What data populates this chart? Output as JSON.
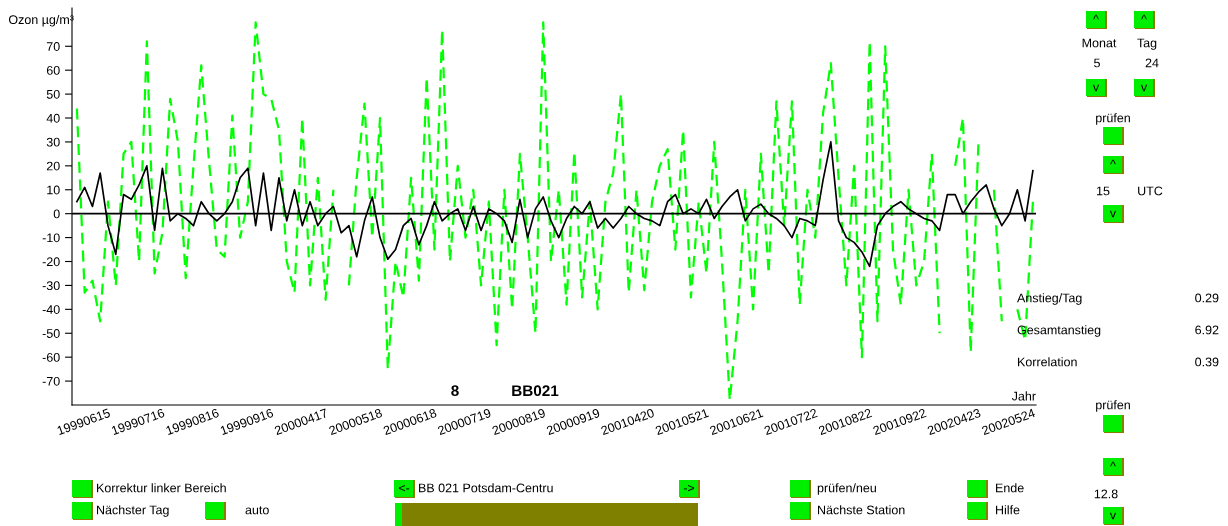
{
  "chart_data": {
    "type": "line",
    "ylabel": "Ozon µg/m³",
    "xlabel": "Jahr",
    "categories": [
      null,
      null,
      null,
      null,
      "19990615",
      null,
      null,
      null,
      null,
      null,
      null,
      "19990716",
      null,
      null,
      null,
      null,
      null,
      null,
      "19990816",
      null,
      null,
      null,
      null,
      null,
      null,
      "19990916",
      null,
      null,
      null,
      null,
      null,
      null,
      "20000417",
      null,
      null,
      null,
      null,
      null,
      null,
      "20000518",
      null,
      null,
      null,
      null,
      null,
      null,
      "20000618",
      null,
      null,
      null,
      null,
      null,
      null,
      "20000719",
      null,
      null,
      null,
      null,
      null,
      null,
      "20000819",
      null,
      null,
      null,
      null,
      null,
      null,
      "20000919",
      null,
      null,
      null,
      null,
      null,
      null,
      "20010420",
      null,
      null,
      null,
      null,
      null,
      null,
      "20010521",
      null,
      null,
      null,
      null,
      null,
      null,
      "20010621",
      null,
      null,
      null,
      null,
      null,
      null,
      "20010722",
      null,
      null,
      null,
      null,
      null,
      null,
      "20010822",
      null,
      null,
      null,
      null,
      null,
      null,
      "20010922",
      null,
      null,
      null,
      null,
      null,
      null,
      "20020423",
      null,
      null,
      null,
      null,
      null,
      null,
      "20020524"
    ],
    "ylim": [
      -80,
      86
    ],
    "yticks": [
      -70,
      -60,
      -50,
      -40,
      -30,
      -20,
      -10,
      0,
      10,
      20,
      30,
      40,
      50,
      60,
      70
    ],
    "grid": false,
    "legend": false,
    "marker": "none",
    "ref_lines": [
      {
        "axis": "y",
        "value": 0,
        "color": "#000000",
        "line_style": "solid"
      }
    ],
    "series": [
      {
        "color": "#00ff00",
        "line_style": "dashed",
        "values": [
          44,
          -33,
          -28,
          -45,
          5,
          -30,
          25,
          30,
          -20,
          72,
          -25,
          -8,
          48,
          30,
          -27,
          20,
          62,
          22,
          -15,
          -18,
          41,
          -10,
          5,
          80,
          50,
          48,
          35,
          -20,
          -33,
          40,
          -30,
          15,
          -36,
          10,
          null,
          -30,
          15,
          46,
          -10,
          40,
          -65,
          -20,
          -35,
          15,
          -28,
          57,
          -15,
          77,
          -20,
          20,
          -10,
          10,
          -30,
          5,
          -55,
          10,
          -40,
          25,
          -10,
          -50,
          80,
          -20,
          10,
          -38,
          26,
          -35,
          5,
          -40,
          5,
          17,
          50,
          -33,
          10,
          -32,
          5,
          20,
          27,
          -15,
          35,
          -35,
          5,
          -25,
          30,
          -20,
          -78,
          -45,
          10,
          -40,
          25,
          -25,
          47,
          -5,
          47,
          -38,
          10,
          -10,
          42,
          63,
          15,
          -30,
          20,
          -60,
          72,
          -45,
          70,
          -15,
          -38,
          10,
          -30,
          -20,
          25,
          -50,
          null,
          20,
          40,
          -58,
          30,
          null,
          10,
          -45,
          null,
          -40,
          -53,
          5
        ]
      },
      {
        "color": "#000000",
        "line_style": "solid",
        "values": [
          5,
          11,
          3,
          17,
          -5,
          -17,
          8,
          6,
          12,
          20,
          -7,
          19,
          -3,
          0,
          -2,
          -5,
          5,
          0,
          -3,
          0,
          5,
          15,
          19,
          -5,
          17,
          -7,
          15,
          -3,
          10,
          -5,
          5,
          -5,
          0,
          3,
          -8,
          -5,
          -18,
          -3,
          7,
          -10,
          -19,
          -15,
          -5,
          -2,
          -13,
          -5,
          5,
          -3,
          0,
          2,
          -7,
          3,
          -7,
          2,
          0,
          -3,
          -12,
          6,
          -10,
          2,
          7,
          -3,
          -10,
          -2,
          3,
          0,
          5,
          -6,
          -2,
          -6,
          -2,
          3,
          0,
          -2,
          -3,
          -5,
          5,
          8,
          0,
          2,
          0,
          6,
          -2,
          3,
          7,
          10,
          -3,
          2,
          4,
          0,
          -2,
          -5,
          -10,
          -2,
          -3,
          -5,
          14,
          30,
          -3,
          -10,
          -12,
          -16,
          -22,
          -5,
          0,
          3,
          5,
          2,
          0,
          -2,
          -3,
          -7,
          8,
          8,
          0,
          5,
          9,
          12,
          2,
          -5,
          0,
          10,
          -3,
          18
        ]
      }
    ],
    "annotations": [
      "8",
      "BB021",
      "^",
      "^",
      "Monat",
      "Tag",
      "5",
      "24",
      "v",
      "v",
      "prüfen",
      "^",
      "15",
      "UTC",
      "v",
      "Anstieg/Tag",
      "0.29",
      "Gesamtanstieg",
      "6.92",
      "Korrelation",
      "0.39",
      "prüfen",
      "^",
      "12.8",
      "v",
      "Korrektur linker Bereich",
      "Nächster Tag",
      "auto",
      "<-",
      "BB 021 Potsdam-Centru",
      "->",
      "prüfen/neu",
      "Nächste Station",
      "Ende",
      "Hilfe"
    ]
  }
}
